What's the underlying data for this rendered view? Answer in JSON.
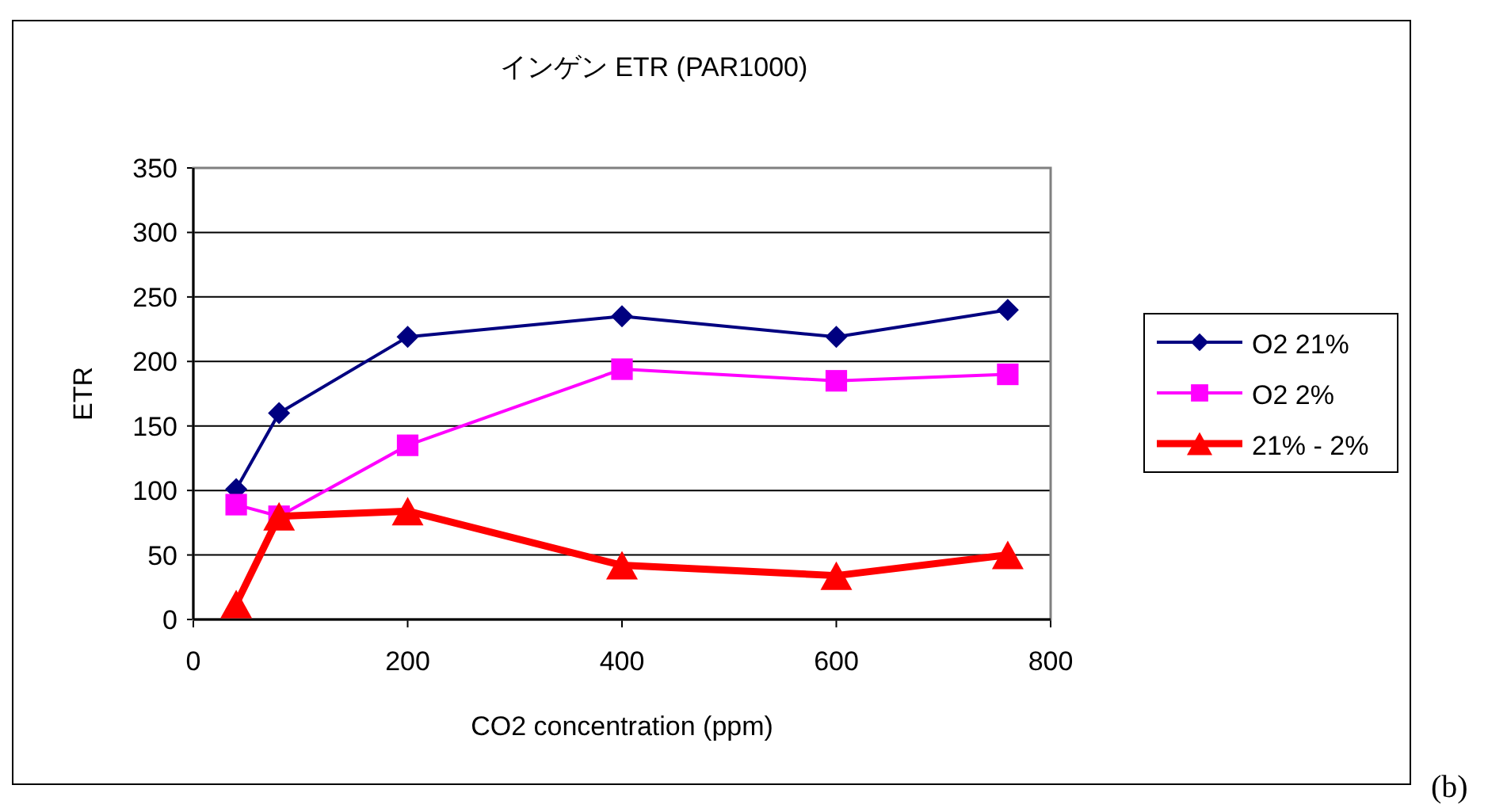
{
  "chart_data": {
    "type": "line",
    "title": "インゲン ETR (PAR1000)",
    "xlabel": "CO2 concentration (ppm)",
    "ylabel": "ETR",
    "x": [
      40,
      80,
      200,
      400,
      600,
      760
    ],
    "series": [
      {
        "name": "O2 21%",
        "color": "#000080",
        "marker": "diamond",
        "values": [
          101,
          160,
          219,
          235,
          219,
          240
        ]
      },
      {
        "name": "O2 2%",
        "color": "#ff00ff",
        "marker": "square",
        "values": [
          89,
          80,
          135,
          194,
          185,
          190
        ]
      },
      {
        "name": "21% - 2%",
        "color": "#ff0000",
        "marker": "triangle",
        "values": [
          12,
          80,
          84,
          42,
          34,
          50
        ]
      }
    ],
    "xlim": [
      0,
      800
    ],
    "xticks": [
      0,
      200,
      400,
      600,
      800
    ],
    "ylim": [
      0,
      350
    ],
    "yticks": [
      0,
      50,
      100,
      150,
      200,
      250,
      300,
      350
    ],
    "grid": "y",
    "legend": "right",
    "annotations": [
      "(b)"
    ]
  }
}
